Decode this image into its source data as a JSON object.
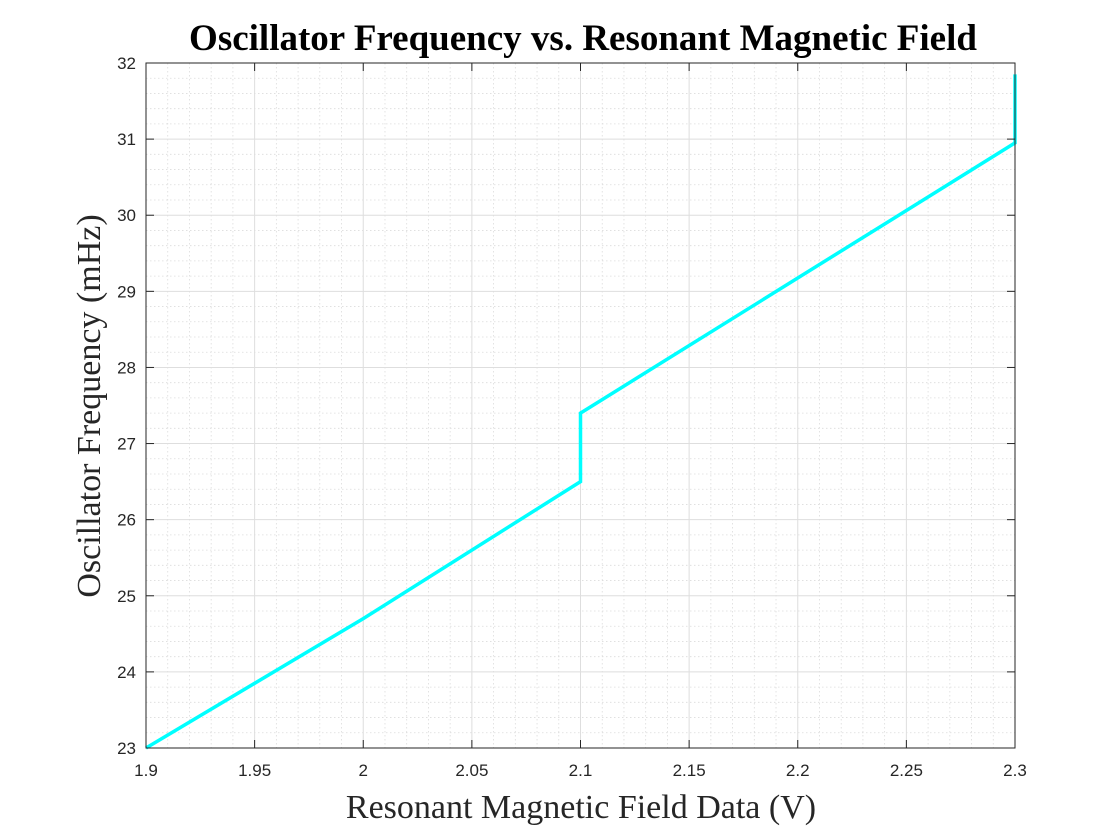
{
  "chart_data": {
    "type": "line",
    "title": "Oscillator Frequency vs. Resonant Magnetic Field",
    "xlabel": "Resonant Magnetic Field Data (V)",
    "ylabel": "Oscillator Frequency (mHz)",
    "xlim": [
      1.9,
      2.3
    ],
    "ylim": [
      23,
      32
    ],
    "xticks": [
      1.9,
      1.95,
      2.0,
      2.05,
      2.1,
      2.15,
      2.2,
      2.25,
      2.3
    ],
    "xtick_labels": [
      "1.9",
      "1.95",
      "2",
      "2.05",
      "2.1",
      "2.15",
      "2.2",
      "2.25",
      "2.3"
    ],
    "yticks": [
      23,
      24,
      25,
      26,
      27,
      28,
      29,
      30,
      31,
      32
    ],
    "ytick_labels": [
      "23",
      "24",
      "25",
      "26",
      "27",
      "28",
      "29",
      "30",
      "31",
      "32"
    ],
    "grid": true,
    "minor_grid": true,
    "box": true,
    "series": [
      {
        "color": "#00FFFF",
        "x": [
          1.9,
          2.0,
          2.1,
          2.1,
          2.3,
          2.3
        ],
        "y": [
          23.0,
          24.7,
          26.5,
          27.4,
          30.95,
          31.85
        ]
      }
    ]
  }
}
